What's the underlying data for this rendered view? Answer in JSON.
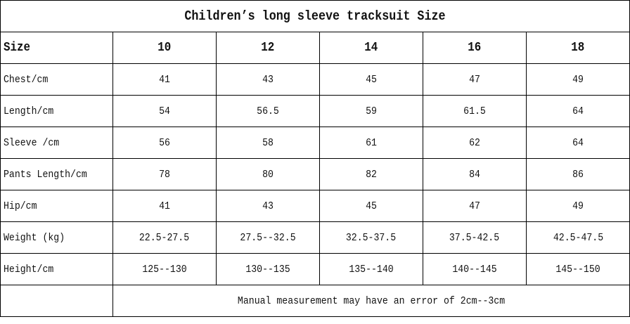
{
  "title": "Children’s long sleeve tracksuit Size",
  "header": {
    "label": "Size",
    "sizes": [
      "10",
      "12",
      "14",
      "16",
      "18"
    ]
  },
  "rows": [
    {
      "label": "Chest/cm",
      "values": [
        "41",
        "43",
        "45",
        "47",
        "49"
      ]
    },
    {
      "label": "Length/cm",
      "values": [
        "54",
        "56.5",
        "59",
        "61.5",
        "64"
      ]
    },
    {
      "label": "Sleeve /cm",
      "values": [
        "56",
        "58",
        "61",
        "62",
        "64"
      ]
    },
    {
      "label": "Pants Length/cm",
      "values": [
        "78",
        "80",
        "82",
        "84",
        "86"
      ]
    },
    {
      "label": "Hip/cm",
      "values": [
        "41",
        "43",
        "45",
        "47",
        "49"
      ]
    },
    {
      "label": "Weight (kg)",
      "values": [
        "22.5-27.5",
        "27.5--32.5",
        "32.5-37.5",
        "37.5-42.5",
        "42.5-47.5"
      ]
    },
    {
      "label": "Height/cm",
      "values": [
        "125--130",
        "130--135",
        "135--140",
        "140--145",
        "145--150"
      ]
    }
  ],
  "note": "Manual measurement may have an error of 2cm--3cm"
}
